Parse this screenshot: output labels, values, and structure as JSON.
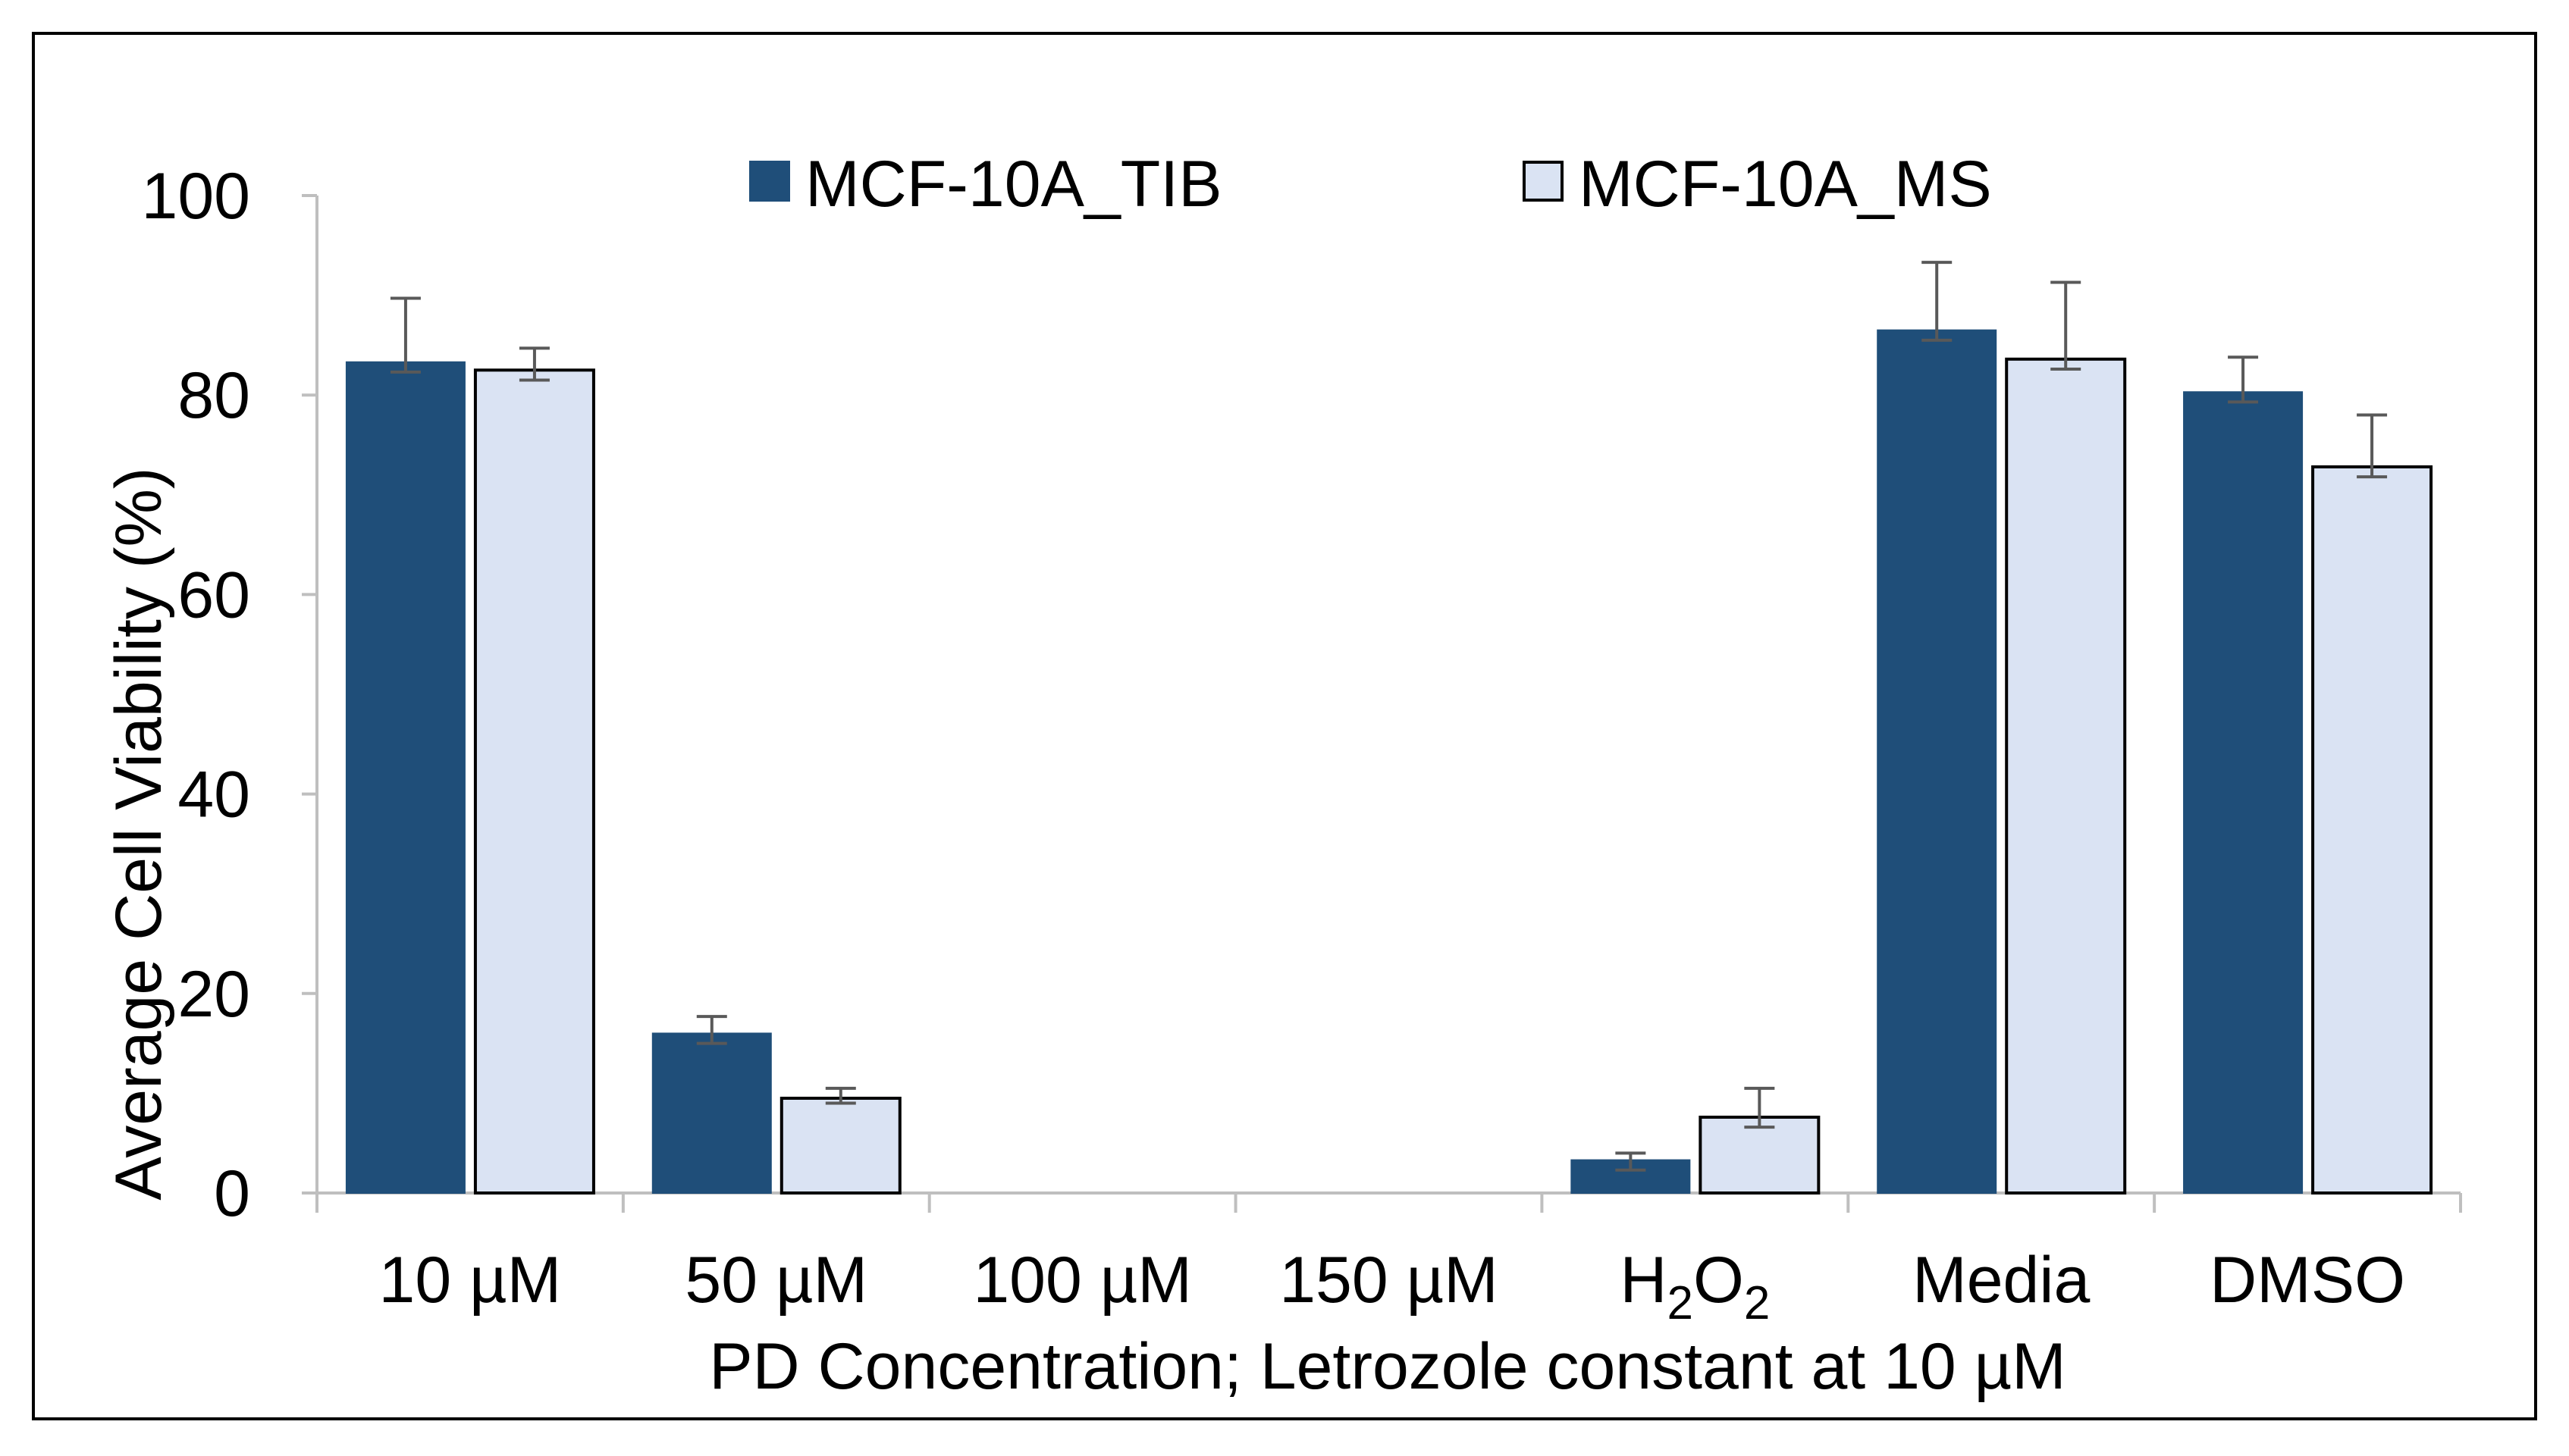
{
  "chart_data": {
    "type": "bar",
    "title": "",
    "xlabel": "PD Concentration; Letrozole constant at 10 µM",
    "ylabel": "Average Cell Viability (%)",
    "ylim": [
      0,
      100
    ],
    "yticks": [
      0,
      20,
      40,
      60,
      80,
      100
    ],
    "ytick_labels": [
      "0",
      "20",
      "40",
      "60",
      "80",
      "100"
    ],
    "categories": [
      "10 µM",
      "50 µM",
      "100 µM",
      "150 µM",
      "H2O2",
      "Media",
      "DMSO"
    ],
    "h2o2_label": {
      "main": "H",
      "sub1": "2",
      "mid": "O",
      "sub2": "2"
    },
    "series": [
      {
        "name": "MCF-10A_TIB",
        "color": "#1f4e79",
        "values": [
          83.3,
          16.0,
          0,
          0,
          3.3,
          86.5,
          80.3
        ],
        "err_high": [
          89.7,
          17.7,
          0,
          0,
          4.0,
          93.3,
          83.8
        ],
        "err_low": [
          82.3,
          15.0,
          0,
          0,
          2.3,
          85.5,
          79.3
        ]
      },
      {
        "name": "MCF-10A_MS",
        "color": "#dae3f3",
        "values": [
          82.5,
          9.5,
          0,
          0,
          7.6,
          83.6,
          72.8
        ],
        "err_high": [
          84.7,
          10.5,
          0,
          0,
          10.5,
          91.3,
          78.0
        ],
        "err_low": [
          81.5,
          9.0,
          0,
          0,
          6.6,
          82.6,
          71.8
        ]
      }
    ],
    "legend_position": "top-center",
    "grid": false
  }
}
